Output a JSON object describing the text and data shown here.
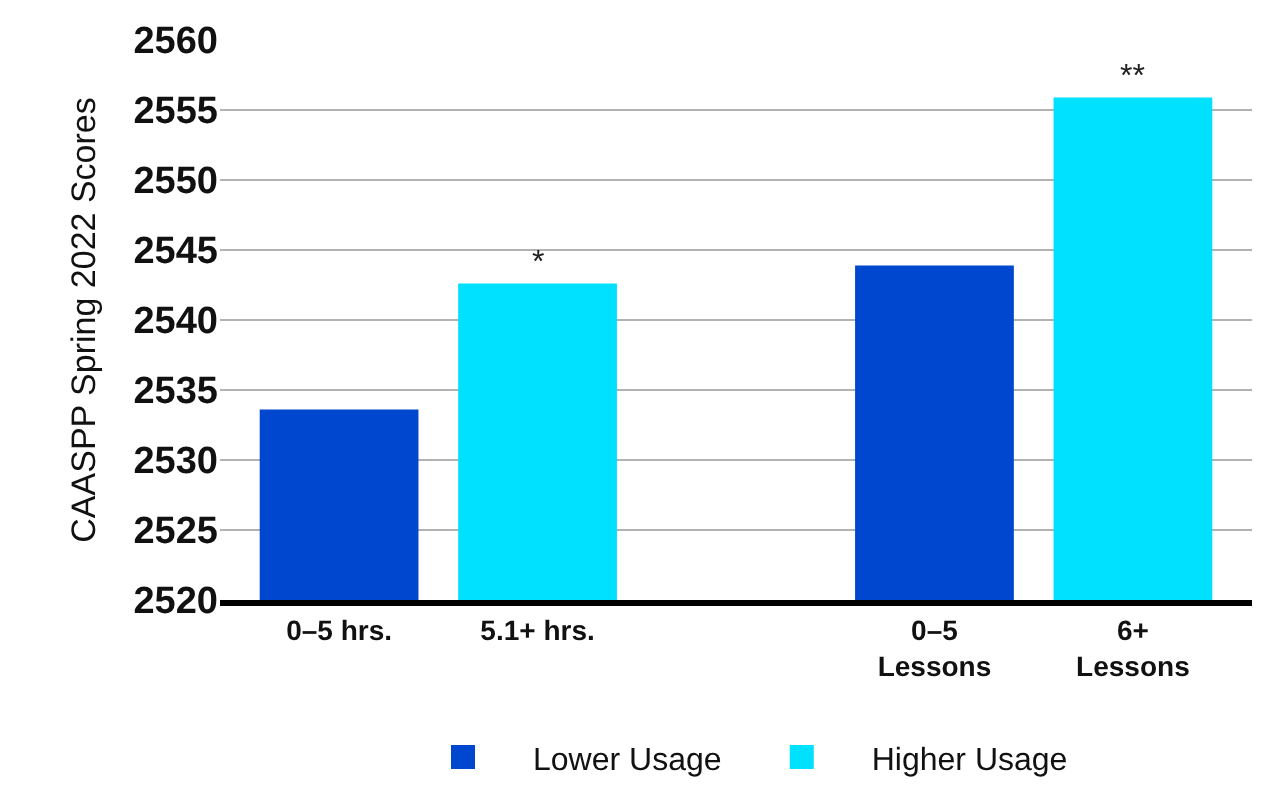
{
  "chart_data": {
    "type": "bar",
    "ylabel": "CAASPP Spring 2022 Scores",
    "categories": [
      "0–5 hrs.",
      "5.1+ hrs.",
      null,
      "0–5\nLessons",
      "6+\nLessons"
    ],
    "series": [
      {
        "name": "Lower Usage",
        "color": "#0047cf",
        "values": [
          2533.6,
          null,
          null,
          2543.9,
          null
        ]
      },
      {
        "name": "Higher Usage",
        "color": "#00e0ff",
        "values": [
          null,
          2542.6,
          null,
          null,
          2555.9
        ]
      }
    ],
    "ylim": [
      2520,
      2560
    ],
    "yticks": [
      2520,
      2525,
      2530,
      2535,
      2540,
      2545,
      2550,
      2555,
      2560
    ],
    "grid": "y",
    "legend": "bottom",
    "annotations": [
      {
        "text": "*",
        "x": "5.1+ hrs.",
        "y": 2542.6
      },
      {
        "text": "**",
        "x": "6+\nLessons",
        "y": 2555.9
      }
    ]
  }
}
